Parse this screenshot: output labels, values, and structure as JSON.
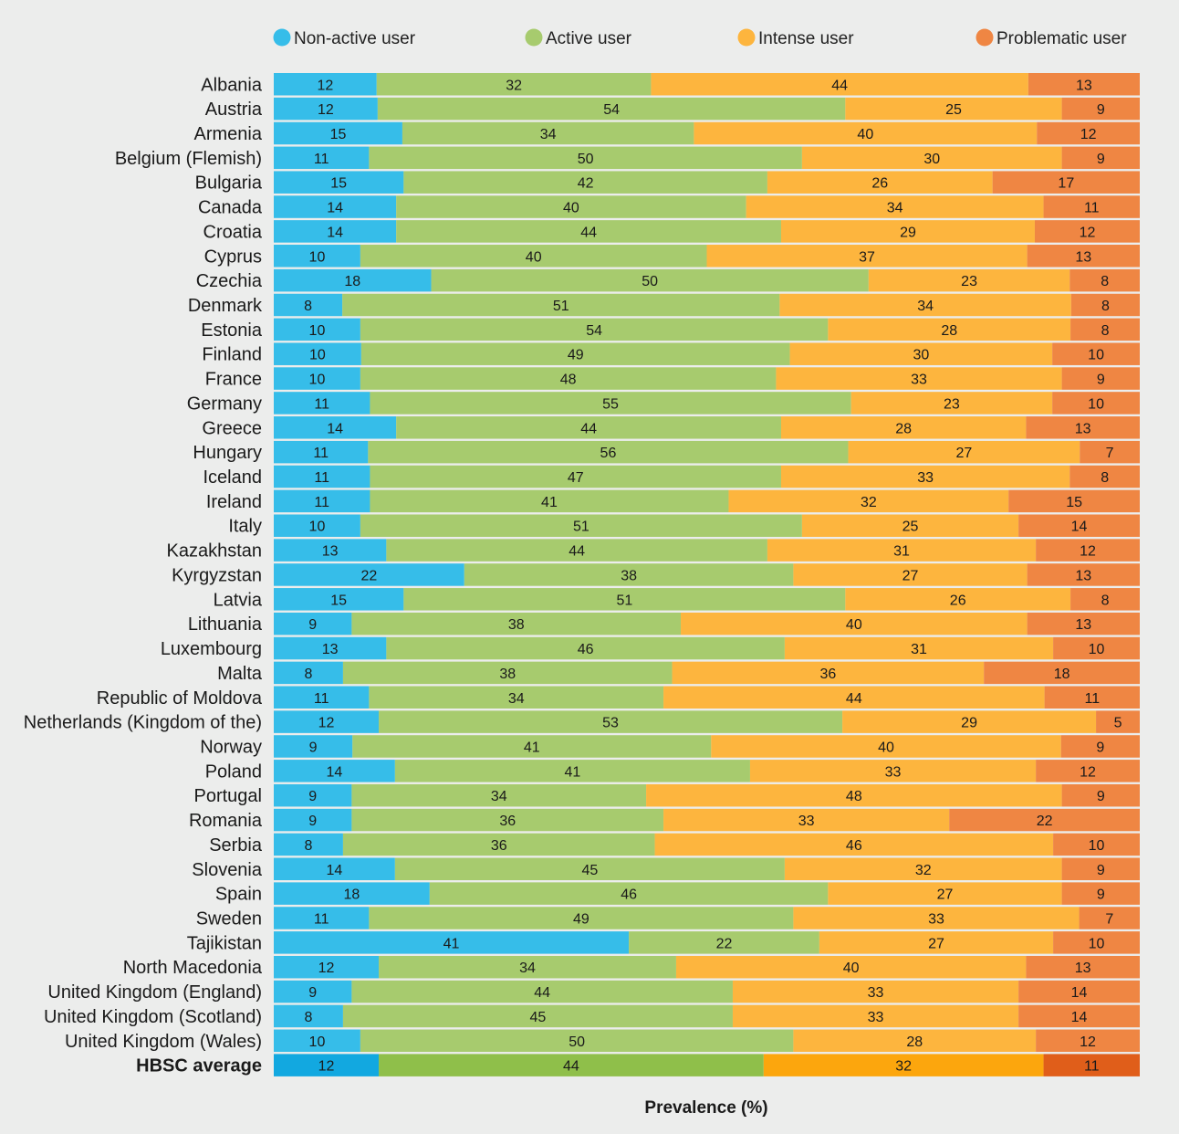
{
  "chart_data": {
    "type": "bar",
    "orientation": "horizontal",
    "stacked": true,
    "xlabel": "Prevalence (%)",
    "ylabel": "",
    "title": "",
    "xlim": [
      0,
      100
    ],
    "legend_position": "top",
    "grid": false,
    "categories": [
      "Albania",
      "Austria",
      "Armenia",
      "Belgium (Flemish)",
      "Bulgaria",
      "Canada",
      "Croatia",
      "Cyprus",
      "Czechia",
      "Denmark",
      "Estonia",
      "Finland",
      "France",
      "Germany",
      "Greece",
      "Hungary",
      "Iceland",
      "Ireland",
      "Italy",
      "Kazakhstan",
      "Kyrgyzstan",
      "Latvia",
      "Lithuania",
      "Luxembourg",
      "Malta",
      "Republic of Moldova",
      "Netherlands (Kingdom of the)",
      "Norway",
      "Poland",
      "Portugal",
      "Romania",
      "Serbia",
      "Slovenia",
      "Spain",
      "Sweden",
      "Tajikistan",
      "North Macedonia",
      "United Kingdom (England)",
      "United Kingdom (Scotland)",
      "United Kingdom (Wales)",
      "HBSC average"
    ],
    "series": [
      {
        "name": "Non-active user",
        "color": "#36bde9",
        "avg_color": "#12a8e0",
        "values": [
          12,
          12,
          15,
          11,
          15,
          14,
          14,
          10,
          18,
          8,
          10,
          10,
          10,
          11,
          14,
          11,
          11,
          11,
          10,
          13,
          22,
          15,
          9,
          13,
          8,
          11,
          12,
          9,
          14,
          9,
          9,
          8,
          14,
          18,
          11,
          41,
          12,
          9,
          8,
          10,
          12
        ]
      },
      {
        "name": "Active user",
        "color": "#a7cb6e",
        "avg_color": "#8fbf4a",
        "values": [
          32,
          54,
          34,
          50,
          42,
          40,
          44,
          40,
          50,
          51,
          54,
          49,
          48,
          55,
          44,
          56,
          47,
          41,
          51,
          44,
          38,
          51,
          38,
          46,
          38,
          34,
          53,
          41,
          41,
          34,
          36,
          36,
          45,
          46,
          49,
          22,
          34,
          44,
          45,
          50,
          44
        ]
      },
      {
        "name": "Intense user",
        "color": "#fdb53e",
        "avg_color": "#fca60d",
        "values": [
          44,
          25,
          40,
          30,
          26,
          34,
          29,
          37,
          23,
          34,
          28,
          30,
          33,
          23,
          28,
          27,
          33,
          32,
          25,
          31,
          27,
          26,
          40,
          31,
          36,
          44,
          29,
          40,
          33,
          48,
          33,
          46,
          32,
          27,
          33,
          27,
          40,
          33,
          33,
          28,
          32
        ]
      },
      {
        "name": "Problematic user",
        "color": "#ef8643",
        "avg_color": "#e05e1a",
        "values": [
          13,
          9,
          12,
          9,
          17,
          11,
          12,
          13,
          8,
          8,
          8,
          10,
          9,
          10,
          13,
          7,
          8,
          15,
          14,
          12,
          13,
          8,
          13,
          10,
          18,
          11,
          5,
          9,
          12,
          9,
          22,
          10,
          9,
          9,
          7,
          10,
          13,
          14,
          14,
          12,
          11
        ]
      }
    ]
  }
}
